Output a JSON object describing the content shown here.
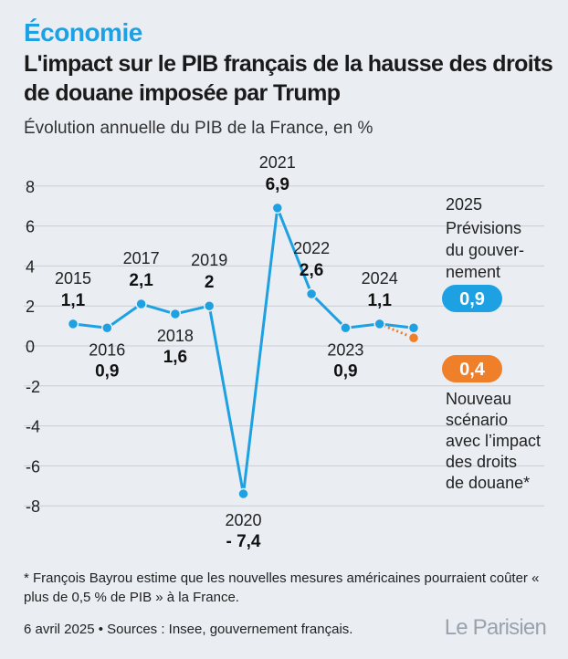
{
  "header": {
    "rubric": "Économie",
    "title": "L'impact sur le PIB français de la hausse des droits de douane imposée par Trump",
    "subtitle": "Évolution annuelle du PIB de la France, en %"
  },
  "chart_data": {
    "type": "line",
    "x": [
      2015,
      2016,
      2017,
      2018,
      2019,
      2020,
      2021,
      2022,
      2023,
      2024,
      2025
    ],
    "series": [
      {
        "name": "",
        "values": [
          1.1,
          0.9,
          2.1,
          1.6,
          2,
          -7.4,
          6.9,
          2.6,
          0.9,
          1.1,
          0.9
        ],
        "color": "#1ea1e2"
      },
      {
        "name": "",
        "values": [
          null,
          null,
          null,
          null,
          null,
          null,
          null,
          null,
          null,
          1.1,
          0.4
        ],
        "color": "#f07f2a",
        "style": "dotted"
      }
    ],
    "point_labels": [
      {
        "year": "2015",
        "value": "1,1"
      },
      {
        "year": "2016",
        "value": "0,9"
      },
      {
        "year": "2017",
        "value": "2,1"
      },
      {
        "year": "2018",
        "value": "1,6"
      },
      {
        "year": "2019",
        "value": "2"
      },
      {
        "year": "2020",
        "value": "- 7,4"
      },
      {
        "year": "2021",
        "value": "6,9"
      },
      {
        "year": "2022",
        "value": "2,6"
      },
      {
        "year": "2023",
        "value": "0,9"
      },
      {
        "year": "2024",
        "value": "1,1"
      }
    ],
    "y_ticks": [
      "8",
      "6",
      "4",
      "2",
      "0",
      "-2",
      "-4",
      "-6",
      "-8"
    ],
    "ylim": [
      -8,
      8
    ],
    "grid": true,
    "annotations": {
      "year_2025": "2025",
      "forecast_lines": [
        "Prévisions",
        "du gouver-",
        "nement"
      ],
      "forecast_badge": "0,9",
      "scenario_badge": "0,4",
      "scenario_lines": [
        "Nouveau",
        "scénario",
        "avec l’impact",
        "des droits",
        "de douane*"
      ]
    }
  },
  "footer": {
    "footnote": "* François Bayrou estime que les nouvelles mesures américaines pourraient coûter « plus de 0,5 % de PIB » à la France.",
    "source": "6 avril 2025 • Sources : Insee, gouvernement français.",
    "logo": "Le Parisien"
  },
  "colors": {
    "accent": "#1ea1e2",
    "scenario": "#f07f2a",
    "background": "#eaeef3"
  }
}
